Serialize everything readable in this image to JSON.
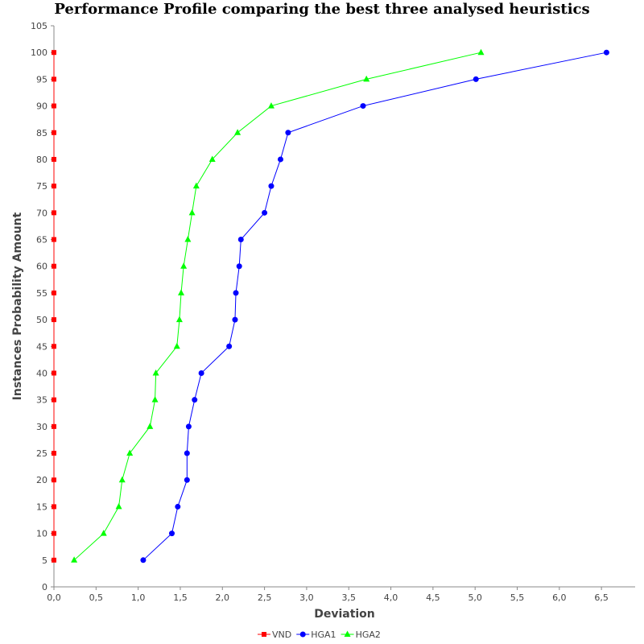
{
  "chart_data": {
    "type": "line",
    "title": "Performance Profile comparing the best three analysed heuristics",
    "xlabel": "Deviation",
    "ylabel": "Instances Probability Amount",
    "xlim": [
      0,
      6.9
    ],
    "ylim": [
      0,
      105
    ],
    "x_ticks": [
      "0,0",
      "0,5",
      "1,0",
      "1,5",
      "2,0",
      "2,5",
      "3,0",
      "3,5",
      "4,0",
      "4,5",
      "5,0",
      "5,5",
      "6,0",
      "6,5"
    ],
    "y_ticks": [
      "0",
      "5",
      "10",
      "15",
      "20",
      "25",
      "30",
      "35",
      "40",
      "45",
      "50",
      "55",
      "60",
      "65",
      "70",
      "75",
      "80",
      "85",
      "90",
      "95",
      "100",
      "105"
    ],
    "grid": false,
    "legend_position": "bottom",
    "series": [
      {
        "name": "VND",
        "color": "#ff0000",
        "marker": "square",
        "points": [
          [
            0,
            5
          ],
          [
            0,
            10
          ],
          [
            0,
            15
          ],
          [
            0,
            20
          ],
          [
            0,
            25
          ],
          [
            0,
            30
          ],
          [
            0,
            35
          ],
          [
            0,
            40
          ],
          [
            0,
            45
          ],
          [
            0,
            50
          ],
          [
            0,
            55
          ],
          [
            0,
            60
          ],
          [
            0,
            65
          ],
          [
            0,
            70
          ],
          [
            0,
            75
          ],
          [
            0,
            80
          ],
          [
            0,
            85
          ],
          [
            0,
            90
          ],
          [
            0,
            95
          ],
          [
            0,
            100
          ]
        ]
      },
      {
        "name": "HGA1",
        "color": "#0000ff",
        "marker": "circle",
        "points": [
          [
            1.06,
            5
          ],
          [
            1.4,
            10
          ],
          [
            1.47,
            15
          ],
          [
            1.58,
            20
          ],
          [
            1.58,
            25
          ],
          [
            1.6,
            30
          ],
          [
            1.67,
            35
          ],
          [
            1.75,
            40
          ],
          [
            2.08,
            45
          ],
          [
            2.15,
            50
          ],
          [
            2.16,
            55
          ],
          [
            2.2,
            60
          ],
          [
            2.22,
            65
          ],
          [
            2.5,
            70
          ],
          [
            2.58,
            75
          ],
          [
            2.69,
            80
          ],
          [
            2.78,
            85
          ],
          [
            3.67,
            90
          ],
          [
            5.01,
            95
          ],
          [
            6.56,
            100
          ]
        ]
      },
      {
        "name": "HGA2",
        "color": "#00ff00",
        "marker": "triangle",
        "points": [
          [
            0.24,
            5
          ],
          [
            0.59,
            10
          ],
          [
            0.77,
            15
          ],
          [
            0.81,
            20
          ],
          [
            0.9,
            25
          ],
          [
            1.14,
            30
          ],
          [
            1.2,
            35
          ],
          [
            1.21,
            40
          ],
          [
            1.46,
            45
          ],
          [
            1.49,
            50
          ],
          [
            1.51,
            55
          ],
          [
            1.54,
            60
          ],
          [
            1.59,
            65
          ],
          [
            1.64,
            70
          ],
          [
            1.69,
            75
          ],
          [
            1.88,
            80
          ],
          [
            2.18,
            85
          ],
          [
            2.58,
            90
          ],
          [
            3.71,
            95
          ],
          [
            5.07,
            100
          ]
        ]
      }
    ]
  }
}
